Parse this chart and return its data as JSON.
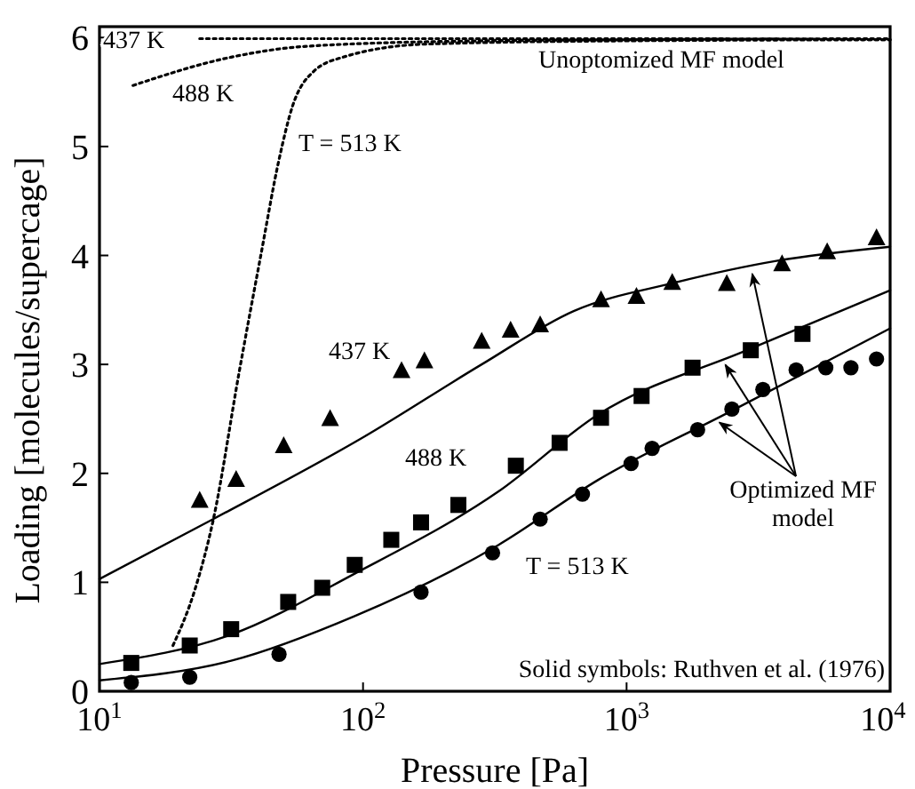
{
  "chart_data": {
    "type": "scatter",
    "xlabel": "Pressure [Pa]",
    "ylabel": "Loading [molecules/supercage]",
    "log": "x",
    "xlim": [
      10,
      10000
    ],
    "ylim": [
      0,
      6.1
    ],
    "xticks": [
      {
        "value": 10,
        "label": "10$^{1}$"
      },
      {
        "value": 100,
        "label": "10$^{2}$"
      },
      {
        "value": 1000,
        "label": "10$^{3}$"
      },
      {
        "value": 10000,
        "label": "10$^{4}$"
      }
    ],
    "yticks": [
      0,
      1,
      2,
      3,
      4,
      5,
      6
    ],
    "grid": false,
    "series": [
      {
        "marker": "triangle",
        "color": "#000000",
        "x": [
          24,
          33,
          50,
          75,
          140,
          171,
          282,
          363,
          470,
          800,
          1090,
          1490,
          2400,
          3890,
          5770,
          8880
        ],
        "values": [
          1.75,
          1.94,
          2.25,
          2.5,
          2.94,
          3.03,
          3.21,
          3.31,
          3.36,
          3.59,
          3.62,
          3.75,
          3.74,
          3.92,
          4.03,
          4.16
        ]
      },
      {
        "marker": "square",
        "color": "#000000",
        "x": [
          13.2,
          22,
          31.6,
          52,
          70,
          93,
          128,
          166,
          230,
          380,
          557,
          800,
          1140,
          1780,
          2960,
          4650
        ],
        "values": [
          0.26,
          0.42,
          0.57,
          0.82,
          0.95,
          1.16,
          1.39,
          1.55,
          1.71,
          2.07,
          2.28,
          2.51,
          2.71,
          2.97,
          3.13,
          3.28
        ]
      },
      {
        "marker": "circle",
        "color": "#000000",
        "x": [
          13.2,
          22,
          48,
          166,
          310,
          470,
          680,
          1040,
          1250,
          1860,
          2510,
          3290,
          4400,
          5700,
          7100,
          8880
        ],
        "values": [
          0.08,
          0.13,
          0.34,
          0.91,
          1.27,
          1.58,
          1.81,
          2.09,
          2.23,
          2.4,
          2.59,
          2.77,
          2.95,
          2.97,
          2.97,
          3.05
        ]
      },
      {
        "type": "line",
        "line_style": "solid",
        "color": "#000000",
        "x": [
          10,
          27,
          100,
          282,
          630,
          1520,
          3700,
          10000
        ],
        "values": [
          1.03,
          1.58,
          2.33,
          3.0,
          3.49,
          3.75,
          3.95,
          4.08
        ]
      },
      {
        "type": "line",
        "line_style": "solid",
        "color": "#000000",
        "x": [
          10,
          31.6,
          93,
          325,
          780,
          2860,
          10000
        ],
        "values": [
          0.25,
          0.52,
          1.08,
          1.83,
          2.54,
          3.13,
          3.68
        ]
      },
      {
        "type": "line",
        "line_style": "solid",
        "color": "#000000",
        "x": [
          10,
          31.6,
          93,
          325,
          780,
          2440,
          10000
        ],
        "values": [
          0.1,
          0.28,
          0.69,
          1.34,
          1.94,
          2.56,
          3.33
        ]
      },
      {
        "type": "line",
        "line_style": "dotted",
        "color": "#000000",
        "x": [
          24,
          100,
          1000,
          10000
        ],
        "values": [
          5.99,
          5.99,
          5.99,
          5.98
        ]
      },
      {
        "type": "line",
        "line_style": "dotted",
        "color": "#000000",
        "x": [
          13.4,
          31.6,
          61,
          280,
          1000,
          10000
        ],
        "values": [
          5.56,
          5.82,
          5.92,
          5.97,
          5.98,
          5.99
        ]
      },
      {
        "type": "line",
        "line_style": "dotted",
        "color": "#000000",
        "x": [
          19,
          23,
          27,
          34,
          41,
          48,
          54,
          65,
          84,
          174,
          1000,
          10000
        ],
        "values": [
          0.42,
          0.93,
          1.57,
          2.95,
          4.01,
          4.88,
          5.37,
          5.69,
          5.82,
          5.94,
          5.97,
          5.98
        ]
      }
    ],
    "annotations": [
      "437 K",
      "488 K",
      "T = 513 K",
      "Unoptomized MF model",
      "437 K",
      "488 K",
      "T = 513 K",
      {
        "text": "Optimized MF model",
        "x": 3000,
        "y": 3.88
      },
      "Solid symbols: Ruthven et al. (1976)"
    ]
  }
}
